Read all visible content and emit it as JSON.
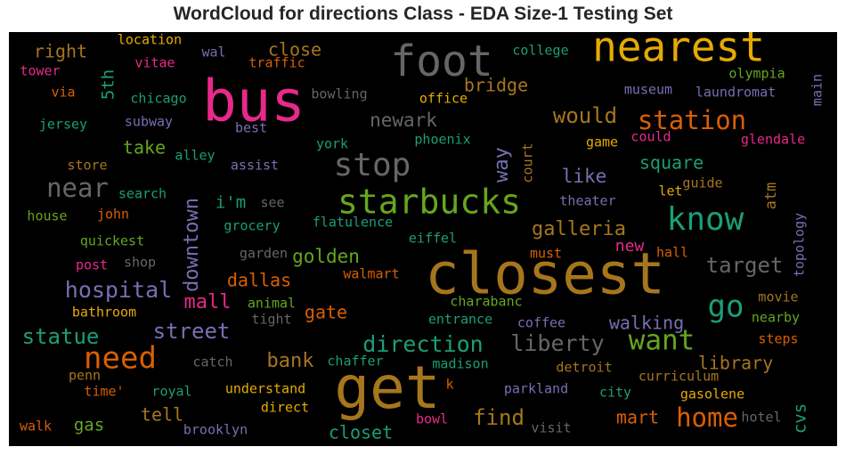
{
  "chart_data": {
    "type": "wordcloud",
    "title": "WordCloud for directions Class - EDA Size-1 Testing Set",
    "background": "#000000",
    "colors": {
      "pink": "#e7298a",
      "orange": "#d95f02",
      "green": "#1b9e77",
      "lime": "#66a61e",
      "gold": "#e6ab02",
      "brown": "#a6761d",
      "gray": "#666666",
      "purple": "#7570b3"
    },
    "words": [
      {
        "text": "closest",
        "weight": 100,
        "color": "brown"
      },
      {
        "text": "get",
        "weight": 95,
        "color": "brown"
      },
      {
        "text": "bus",
        "weight": 92,
        "color": "pink"
      },
      {
        "text": "foot",
        "weight": 72,
        "color": "gray"
      },
      {
        "text": "nearest",
        "weight": 70,
        "color": "gold"
      },
      {
        "text": "starbucks",
        "weight": 60,
        "color": "lime"
      },
      {
        "text": "stop",
        "weight": 56,
        "color": "gray"
      },
      {
        "text": "know",
        "weight": 56,
        "color": "green"
      },
      {
        "text": "need",
        "weight": 52,
        "color": "orange"
      },
      {
        "text": "want",
        "weight": 48,
        "color": "lime"
      },
      {
        "text": "station",
        "weight": 44,
        "color": "orange"
      },
      {
        "text": "go",
        "weight": 44,
        "color": "green"
      },
      {
        "text": "near",
        "weight": 42,
        "color": "gray"
      },
      {
        "text": "home",
        "weight": 40,
        "color": "orange"
      },
      {
        "text": "hospital",
        "weight": 38,
        "color": "purple"
      },
      {
        "text": "direction",
        "weight": 37,
        "color": "green"
      },
      {
        "text": "liberty",
        "weight": 35,
        "color": "gray"
      },
      {
        "text": "statue",
        "weight": 34,
        "color": "green"
      },
      {
        "text": "target",
        "weight": 34,
        "color": "gray"
      },
      {
        "text": "would",
        "weight": 32,
        "color": "brown"
      },
      {
        "text": "street",
        "weight": 32,
        "color": "purple"
      },
      {
        "text": "downtown",
        "weight": 32,
        "color": "purple"
      },
      {
        "text": "find",
        "weight": 32,
        "color": "brown"
      },
      {
        "text": "way",
        "weight": 32,
        "color": "purple"
      },
      {
        "text": "galleria",
        "weight": 30,
        "color": "brown"
      },
      {
        "text": "walking",
        "weight": 30,
        "color": "purple"
      },
      {
        "text": "bank",
        "weight": 29,
        "color": "brown"
      },
      {
        "text": "mall",
        "weight": 29,
        "color": "pink"
      },
      {
        "text": "close",
        "weight": 28,
        "color": "brown"
      },
      {
        "text": "library",
        "weight": 27,
        "color": "brown"
      },
      {
        "text": "newark",
        "weight": 27,
        "color": "gray"
      },
      {
        "text": "golden",
        "weight": 27,
        "color": "lime"
      },
      {
        "text": "like",
        "weight": 27,
        "color": "purple"
      },
      {
        "text": "mart",
        "weight": 26,
        "color": "orange"
      },
      {
        "text": "dallas",
        "weight": 26,
        "color": "orange"
      },
      {
        "text": "gate",
        "weight": 25,
        "color": "orange"
      },
      {
        "text": "bridge",
        "weight": 25,
        "color": "brown"
      },
      {
        "text": "take",
        "weight": 25,
        "color": "lime"
      },
      {
        "text": "square",
        "weight": 25,
        "color": "green"
      },
      {
        "text": "tell",
        "weight": 24,
        "color": "brown"
      },
      {
        "text": "cvs",
        "weight": 24,
        "color": "green"
      },
      {
        "text": "closet",
        "weight": 24,
        "color": "green"
      },
      {
        "text": "right",
        "weight": 24,
        "color": "brown"
      },
      {
        "text": "new",
        "weight": 24,
        "color": "pink"
      },
      {
        "text": "i'm",
        "weight": 23,
        "color": "green"
      },
      {
        "text": "5th",
        "weight": 23,
        "color": "green"
      },
      {
        "text": "gas",
        "weight": 23,
        "color": "lime"
      },
      {
        "text": "atm",
        "weight": 22,
        "color": "brown"
      },
      {
        "text": "olympia",
        "weight": 18,
        "color": "lime"
      },
      {
        "text": "college",
        "weight": 18,
        "color": "green"
      },
      {
        "text": "location",
        "weight": 18,
        "color": "gold"
      },
      {
        "text": "traffic",
        "weight": 18,
        "color": "orange"
      },
      {
        "text": "wal",
        "weight": 18,
        "color": "purple"
      },
      {
        "text": "tower",
        "weight": 18,
        "color": "pink"
      },
      {
        "text": "vitae",
        "weight": 18,
        "color": "pink"
      },
      {
        "text": "via",
        "weight": 18,
        "color": "orange"
      },
      {
        "text": "chicago",
        "weight": 18,
        "color": "green"
      },
      {
        "text": "bowling",
        "weight": 18,
        "color": "gray"
      },
      {
        "text": "office",
        "weight": 18,
        "color": "gold"
      },
      {
        "text": "museum",
        "weight": 18,
        "color": "purple"
      },
      {
        "text": "laundromat",
        "weight": 18,
        "color": "purple"
      },
      {
        "text": "main",
        "weight": 18,
        "color": "purple"
      },
      {
        "text": "jersey",
        "weight": 18,
        "color": "green"
      },
      {
        "text": "subway",
        "weight": 18,
        "color": "purple"
      },
      {
        "text": "best",
        "weight": 18,
        "color": "purple"
      },
      {
        "text": "york",
        "weight": 18,
        "color": "green"
      },
      {
        "text": "phoenix",
        "weight": 18,
        "color": "green"
      },
      {
        "text": "court",
        "weight": 18,
        "color": "brown"
      },
      {
        "text": "game",
        "weight": 18,
        "color": "gold"
      },
      {
        "text": "could",
        "weight": 18,
        "color": "pink"
      },
      {
        "text": "glendale",
        "weight": 18,
        "color": "pink"
      },
      {
        "text": "store",
        "weight": 18,
        "color": "brown"
      },
      {
        "text": "alley",
        "weight": 18,
        "color": "green"
      },
      {
        "text": "assist",
        "weight": 18,
        "color": "purple"
      },
      {
        "text": "search",
        "weight": 18,
        "color": "green"
      },
      {
        "text": "see",
        "weight": 18,
        "color": "gray"
      },
      {
        "text": "theater",
        "weight": 18,
        "color": "purple"
      },
      {
        "text": "guide",
        "weight": 18,
        "color": "brown"
      },
      {
        "text": "let",
        "weight": 18,
        "color": "gold"
      },
      {
        "text": "house",
        "weight": 18,
        "color": "lime"
      },
      {
        "text": "john",
        "weight": 18,
        "color": "orange"
      },
      {
        "text": "grocery",
        "weight": 18,
        "color": "green"
      },
      {
        "text": "flatulence",
        "weight": 18,
        "color": "green"
      },
      {
        "text": "eiffel",
        "weight": 18,
        "color": "green"
      },
      {
        "text": "quickest",
        "weight": 18,
        "color": "lime"
      },
      {
        "text": "must",
        "weight": 18,
        "color": "orange"
      },
      {
        "text": "hall",
        "weight": 18,
        "color": "orange"
      },
      {
        "text": "topology",
        "weight": 18,
        "color": "purple"
      },
      {
        "text": "post",
        "weight": 18,
        "color": "pink"
      },
      {
        "text": "shop",
        "weight": 18,
        "color": "gray"
      },
      {
        "text": "garden",
        "weight": 18,
        "color": "gray"
      },
      {
        "text": "walmart",
        "weight": 18,
        "color": "orange"
      },
      {
        "text": "animal",
        "weight": 18,
        "color": "lime"
      },
      {
        "text": "movie",
        "weight": 18,
        "color": "brown"
      },
      {
        "text": "bathroom",
        "weight": 18,
        "color": "gold"
      },
      {
        "text": "tight",
        "weight": 18,
        "color": "gray"
      },
      {
        "text": "charabanc",
        "weight": 18,
        "color": "lime"
      },
      {
        "text": "nearby",
        "weight": 18,
        "color": "lime"
      },
      {
        "text": "entrance",
        "weight": 18,
        "color": "green"
      },
      {
        "text": "coffee",
        "weight": 18,
        "color": "purple"
      },
      {
        "text": "steps",
        "weight": 18,
        "color": "orange"
      },
      {
        "text": "catch",
        "weight": 18,
        "color": "gray"
      },
      {
        "text": "chaffer",
        "weight": 18,
        "color": "green"
      },
      {
        "text": "madison",
        "weight": 18,
        "color": "green"
      },
      {
        "text": "detroit",
        "weight": 18,
        "color": "brown"
      },
      {
        "text": "curriculum",
        "weight": 18,
        "color": "brown"
      },
      {
        "text": "penn",
        "weight": 18,
        "color": "brown"
      },
      {
        "text": "time'",
        "weight": 18,
        "color": "orange"
      },
      {
        "text": "royal",
        "weight": 18,
        "color": "green"
      },
      {
        "text": "understand",
        "weight": 18,
        "color": "gold"
      },
      {
        "text": "k",
        "weight": 18,
        "color": "orange"
      },
      {
        "text": "parkland",
        "weight": 18,
        "color": "purple"
      },
      {
        "text": "city",
        "weight": 18,
        "color": "green"
      },
      {
        "text": "gasolene",
        "weight": 18,
        "color": "gold"
      },
      {
        "text": "direct",
        "weight": 18,
        "color": "gold"
      },
      {
        "text": "bowl",
        "weight": 18,
        "color": "pink"
      },
      {
        "text": "hotel",
        "weight": 18,
        "color": "gray"
      },
      {
        "text": "walk",
        "weight": 18,
        "color": "orange"
      },
      {
        "text": "brooklyn",
        "weight": 18,
        "color": "purple"
      },
      {
        "text": "visit",
        "weight": 18,
        "color": "gray"
      }
    ]
  }
}
